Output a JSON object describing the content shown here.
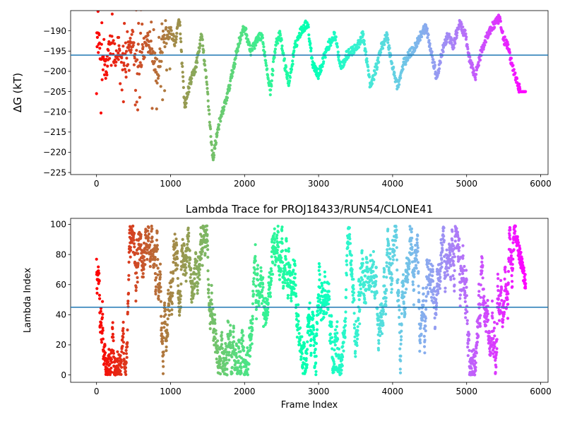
{
  "chart_data": [
    {
      "type": "scatter",
      "title": "",
      "xlabel": "",
      "ylabel": "ΔG (kT)",
      "xlim": [
        -350,
        6100
      ],
      "ylim": [
        -225.5,
        -185.0
      ],
      "xticks": [
        0,
        1000,
        2000,
        3000,
        4000,
        5000,
        6000
      ],
      "yticks": [
        -225,
        -220,
        -215,
        -210,
        -205,
        -200,
        -195,
        -190
      ],
      "hline": -196,
      "hline_color": "#1f77b4",
      "colormap": "rainbow (red at frame 0 → violet at frame 5800)",
      "grid": false,
      "n_points": 5800,
      "trajectory_anchors": [
        [
          0,
          -191
        ],
        [
          120,
          -200
        ],
        [
          200,
          -192
        ],
        [
          260,
          -197
        ],
        [
          330,
          -193
        ],
        [
          400,
          -198
        ],
        [
          480,
          -191
        ],
        [
          560,
          -199
        ],
        [
          640,
          -194
        ],
        [
          720,
          -192
        ],
        [
          820,
          -200
        ],
        [
          900,
          -193
        ],
        [
          980,
          -189
        ],
        [
          1060,
          -193
        ],
        [
          1120,
          -187
        ],
        [
          1190,
          -209
        ],
        [
          1260,
          -203
        ],
        [
          1340,
          -199
        ],
        [
          1420,
          -191
        ],
        [
          1500,
          -205
        ],
        [
          1570,
          -222
        ],
        [
          1640,
          -214
        ],
        [
          1720,
          -209
        ],
        [
          1780,
          -205
        ],
        [
          1850,
          -199
        ],
        [
          1920,
          -193
        ],
        [
          2000,
          -189
        ],
        [
          2080,
          -195
        ],
        [
          2150,
          -193
        ],
        [
          2230,
          -191
        ],
        [
          2300,
          -199
        ],
        [
          2350,
          -205
        ],
        [
          2420,
          -193
        ],
        [
          2480,
          -191
        ],
        [
          2550,
          -199
        ],
        [
          2600,
          -203
        ],
        [
          2680,
          -194
        ],
        [
          2760,
          -190
        ],
        [
          2850,
          -188
        ],
        [
          2920,
          -198
        ],
        [
          3000,
          -201
        ],
        [
          3080,
          -196
        ],
        [
          3150,
          -193
        ],
        [
          3220,
          -191
        ],
        [
          3300,
          -199
        ],
        [
          3380,
          -196
        ],
        [
          3450,
          -195
        ],
        [
          3520,
          -194
        ],
        [
          3600,
          -191
        ],
        [
          3650,
          -197
        ],
        [
          3700,
          -204
        ],
        [
          3780,
          -199
        ],
        [
          3850,
          -194
        ],
        [
          3920,
          -191
        ],
        [
          4000,
          -199
        ],
        [
          4070,
          -204
        ],
        [
          4150,
          -198
        ],
        [
          4220,
          -196
        ],
        [
          4300,
          -194
        ],
        [
          4380,
          -191
        ],
        [
          4450,
          -189
        ],
        [
          4520,
          -195
        ],
        [
          4600,
          -202
        ],
        [
          4670,
          -195
        ],
        [
          4750,
          -191
        ],
        [
          4820,
          -194
        ],
        [
          4900,
          -188
        ],
        [
          4980,
          -191
        ],
        [
          5050,
          -198
        ],
        [
          5120,
          -201
        ],
        [
          5200,
          -195
        ],
        [
          5280,
          -191
        ],
        [
          5350,
          -189
        ],
        [
          5440,
          -187
        ],
        [
          5500,
          -192
        ],
        [
          5560,
          -194
        ],
        [
          5620,
          -199
        ],
        [
          5700,
          -204
        ],
        [
          5800,
          -205
        ]
      ]
    },
    {
      "type": "scatter",
      "title": "Lambda Trace for PROJ18433/RUN54/CLONE41",
      "xlabel": "Frame Index",
      "ylabel": "Lambda Index",
      "xlim": [
        -350,
        6100
      ],
      "ylim": [
        -4.9,
        104
      ],
      "xticks": [
        0,
        1000,
        2000,
        3000,
        4000,
        5000,
        6000
      ],
      "yticks": [
        0,
        20,
        40,
        60,
        80,
        100
      ],
      "hline": 45,
      "hline_color": "#1f77b4",
      "colormap": "rainbow (red at frame 0 → violet at frame 5800)",
      "grid": false,
      "n_points": 5800,
      "value_range": [
        0,
        99
      ],
      "tail_segment": {
        "x_start": 5640,
        "x_end": 5800,
        "values_range": [
          55,
          99
        ]
      }
    }
  ]
}
